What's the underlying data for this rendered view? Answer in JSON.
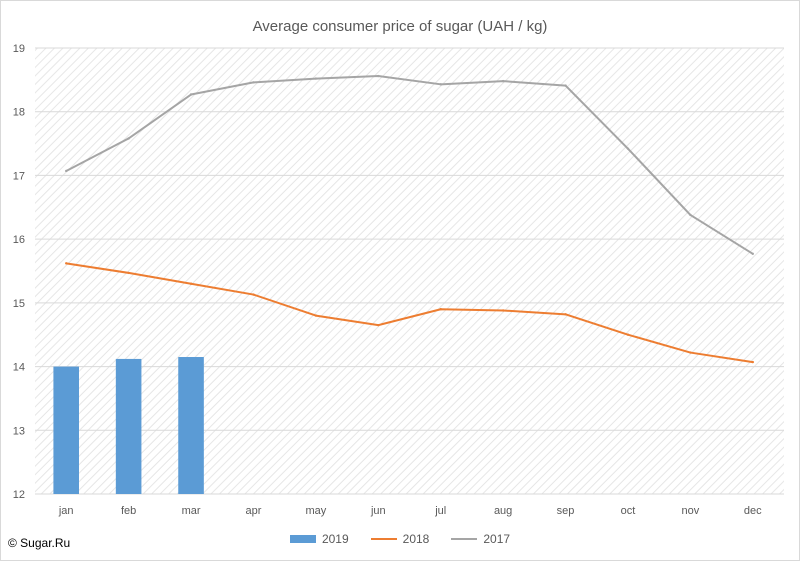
{
  "chart_data": {
    "type": "bar+line",
    "title": "Average consumer price of sugar (UAH / kg)",
    "categories": [
      "jan",
      "feb",
      "mar",
      "apr",
      "may",
      "jun",
      "jul",
      "aug",
      "sep",
      "oct",
      "nov",
      "dec"
    ],
    "ylim": [
      12,
      19
    ],
    "yticks": [
      12,
      13,
      14,
      15,
      16,
      17,
      18,
      19
    ],
    "grid": true,
    "legend_position": "bottom",
    "series": [
      {
        "name": "2019",
        "type": "bar",
        "color": "#5b9bd5",
        "values": [
          14.0,
          14.12,
          14.15,
          null,
          null,
          null,
          null,
          null,
          null,
          null,
          null,
          null
        ]
      },
      {
        "name": "2018",
        "type": "line",
        "color": "#ed7d31",
        "values": [
          15.62,
          15.47,
          15.3,
          15.13,
          14.8,
          14.65,
          14.9,
          14.88,
          14.82,
          14.5,
          14.22,
          14.07
        ]
      },
      {
        "name": "2017",
        "type": "line",
        "color": "#a5a5a5",
        "values": [
          17.07,
          17.58,
          18.27,
          18.46,
          18.52,
          18.56,
          18.43,
          18.48,
          18.41,
          17.42,
          16.38,
          15.77
        ]
      }
    ]
  },
  "credit": "© Sugar.Ru"
}
